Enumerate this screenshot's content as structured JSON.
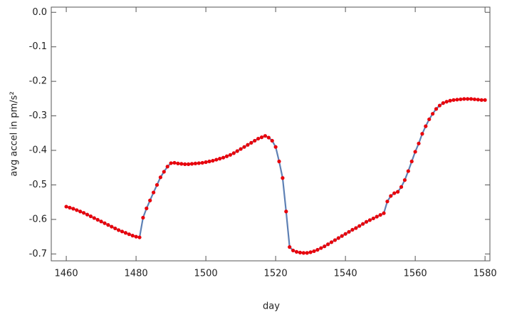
{
  "chart_data": {
    "type": "line",
    "xlabel": "day",
    "ylabel": "avg accel in pm/s²",
    "x": [
      1460,
      1461,
      1462,
      1463,
      1464,
      1465,
      1466,
      1467,
      1468,
      1469,
      1470,
      1471,
      1472,
      1473,
      1474,
      1475,
      1476,
      1477,
      1478,
      1479,
      1480,
      1481,
      1482,
      1483,
      1484,
      1485,
      1486,
      1487,
      1488,
      1489,
      1490,
      1491,
      1492,
      1493,
      1494,
      1495,
      1496,
      1497,
      1498,
      1499,
      1500,
      1501,
      1502,
      1503,
      1504,
      1505,
      1506,
      1507,
      1508,
      1509,
      1510,
      1511,
      1512,
      1513,
      1514,
      1515,
      1516,
      1517,
      1518,
      1519,
      1520,
      1521,
      1522,
      1523,
      1524,
      1525,
      1526,
      1527,
      1528,
      1529,
      1530,
      1531,
      1532,
      1533,
      1534,
      1535,
      1536,
      1537,
      1538,
      1539,
      1540,
      1541,
      1542,
      1543,
      1544,
      1545,
      1546,
      1547,
      1548,
      1549,
      1550,
      1551,
      1552,
      1553,
      1554,
      1555,
      1556,
      1557,
      1558,
      1559,
      1560,
      1561,
      1562,
      1563,
      1564,
      1565,
      1566,
      1567,
      1568,
      1569,
      1570,
      1571,
      1572,
      1573,
      1574,
      1575,
      1576,
      1577,
      1578,
      1579,
      1580
    ],
    "series": [
      {
        "color": "#5e81b5",
        "marker_color": "#e8000b",
        "values": [
          -0.563,
          -0.566,
          -0.569,
          -0.573,
          -0.577,
          -0.581,
          -0.586,
          -0.591,
          -0.596,
          -0.601,
          -0.606,
          -0.611,
          -0.616,
          -0.621,
          -0.626,
          -0.631,
          -0.635,
          -0.639,
          -0.643,
          -0.647,
          -0.65,
          -0.652,
          -0.595,
          -0.568,
          -0.545,
          -0.522,
          -0.5,
          -0.478,
          -0.462,
          -0.447,
          -0.437,
          -0.436,
          -0.438,
          -0.439,
          -0.44,
          -0.44,
          -0.439,
          -0.438,
          -0.437,
          -0.436,
          -0.434,
          -0.432,
          -0.43,
          -0.427,
          -0.424,
          -0.421,
          -0.417,
          -0.413,
          -0.408,
          -0.402,
          -0.396,
          -0.39,
          -0.384,
          -0.378,
          -0.372,
          -0.366,
          -0.362,
          -0.358,
          -0.363,
          -0.372,
          -0.39,
          -0.432,
          -0.48,
          -0.577,
          -0.68,
          -0.69,
          -0.694,
          -0.696,
          -0.697,
          -0.697,
          -0.695,
          -0.692,
          -0.688,
          -0.683,
          -0.678,
          -0.672,
          -0.666,
          -0.66,
          -0.654,
          -0.648,
          -0.642,
          -0.636,
          -0.63,
          -0.625,
          -0.619,
          -0.613,
          -0.607,
          -0.602,
          -0.597,
          -0.592,
          -0.587,
          -0.582,
          -0.548,
          -0.532,
          -0.524,
          -0.52,
          -0.506,
          -0.486,
          -0.46,
          -0.432,
          -0.404,
          -0.38,
          -0.352,
          -0.33,
          -0.31,
          -0.294,
          -0.28,
          -0.27,
          -0.263,
          -0.259,
          -0.256,
          -0.254,
          -0.253,
          -0.252,
          -0.251,
          -0.251,
          -0.251,
          -0.252,
          -0.253,
          -0.254,
          -0.254
        ]
      }
    ],
    "xlim": [
      1455.7,
      1581.4
    ],
    "ylim": [
      -0.72,
      0.015
    ],
    "xticks": [
      1460,
      1480,
      1500,
      1520,
      1540,
      1560,
      1580
    ],
    "yticks": [
      {
        "value": 0,
        "label": "0.0"
      },
      -0.1,
      -0.2,
      -0.3,
      -0.4,
      -0.5,
      -0.6,
      -0.7
    ]
  }
}
